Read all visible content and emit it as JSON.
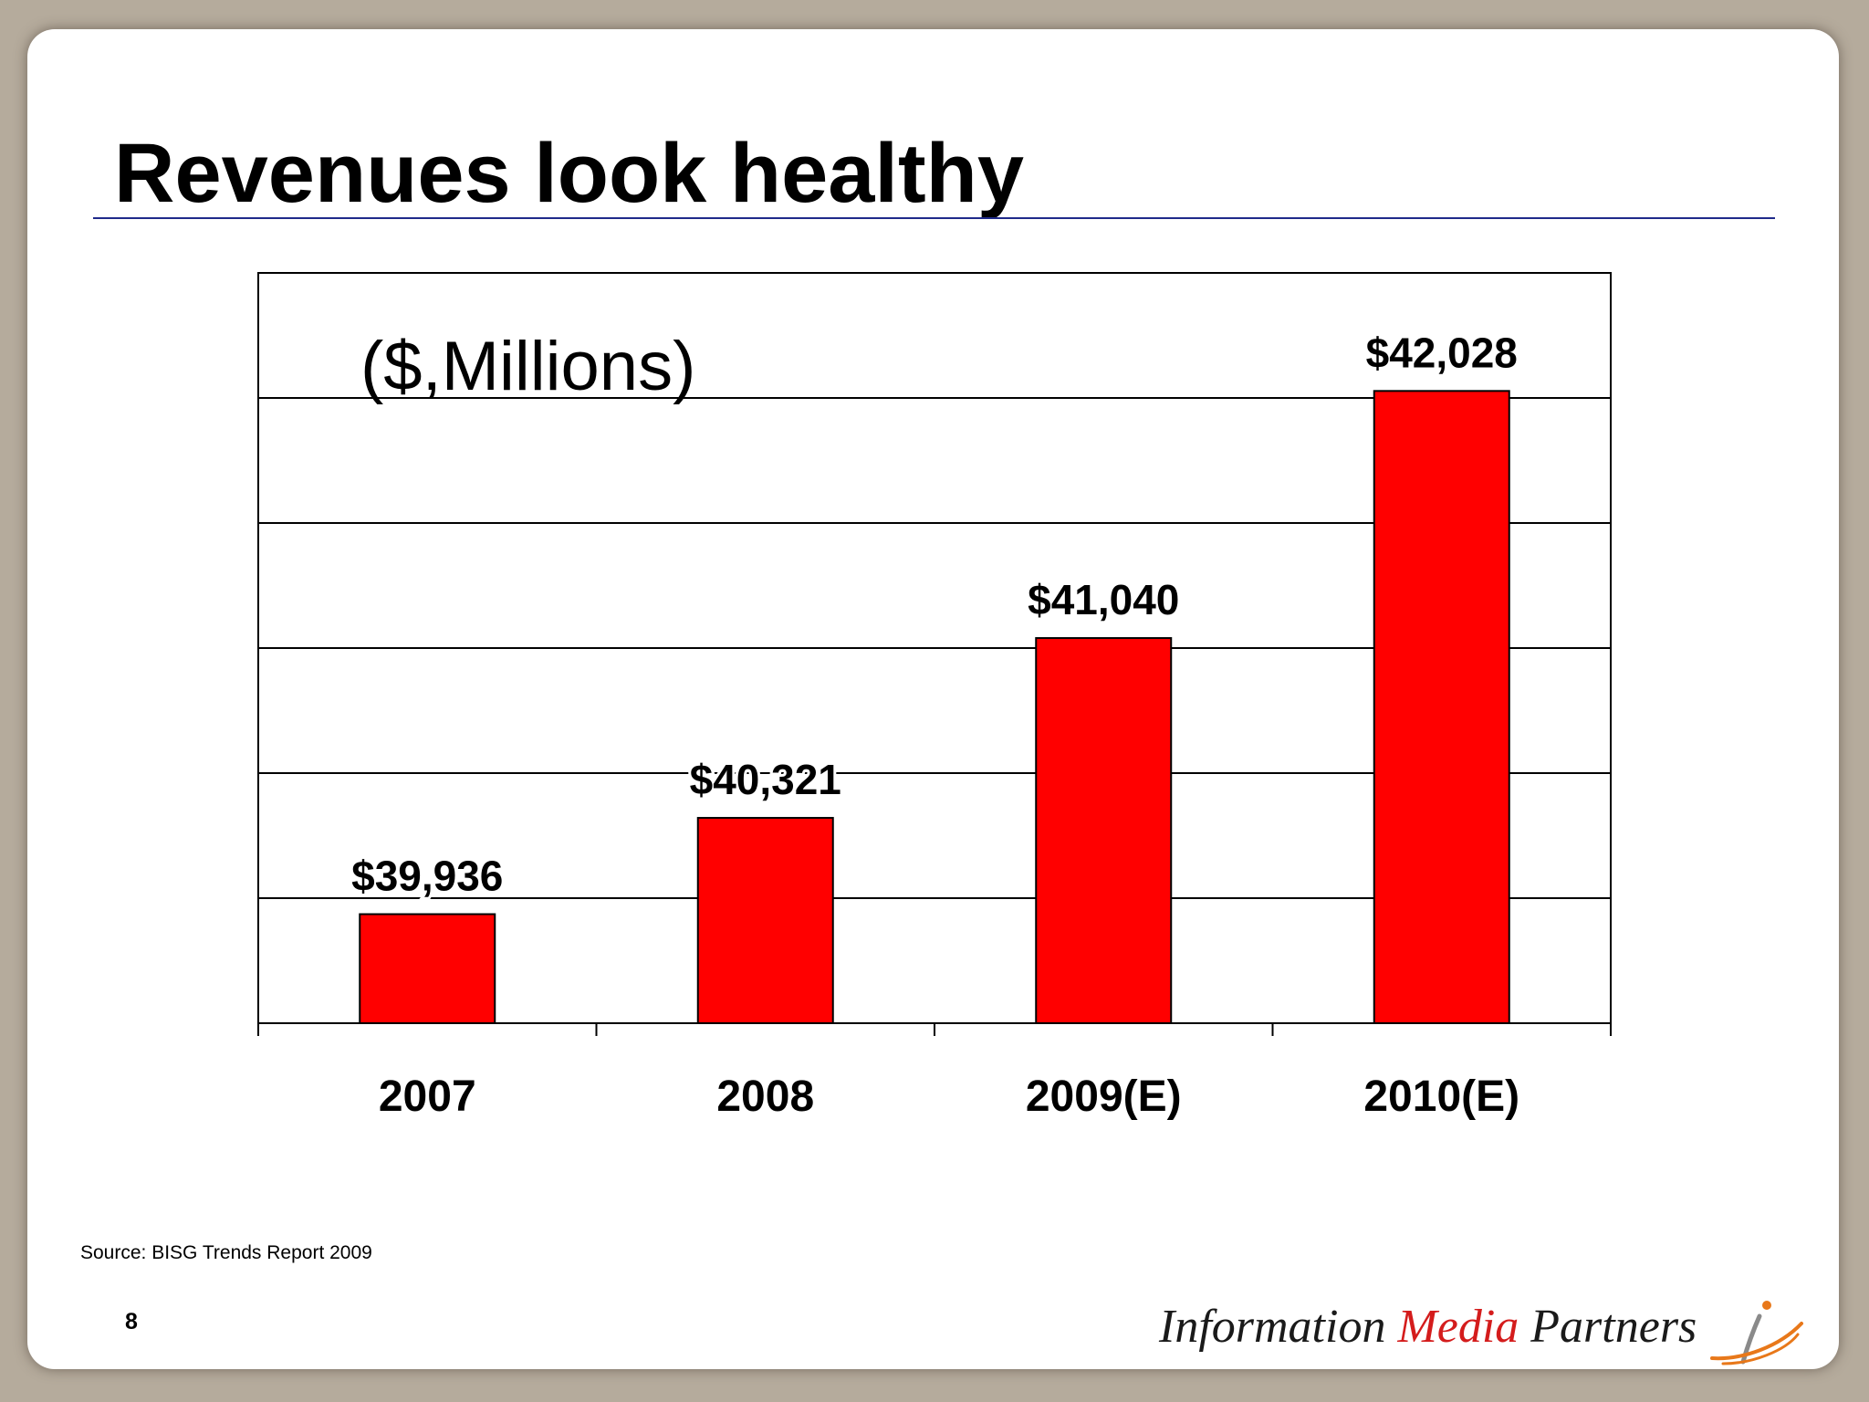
{
  "slide": {
    "title": "Revenues look healthy",
    "units_note": "($,Millions)",
    "source": "Source: BISG Trends Report 2009",
    "page_number": "8",
    "logo": {
      "part1": "Information ",
      "part2": "Media",
      "part3": " Partners",
      "mark_icon": "i-swoosh-logo-icon"
    }
  },
  "chart_data": {
    "type": "bar",
    "categories": [
      "2007",
      "2008",
      "2009(E)",
      "2010(E)"
    ],
    "values": [
      39936,
      40321,
      41040,
      42028
    ],
    "value_labels": [
      "$39,936",
      "$40,321",
      "$41,040",
      "$42,028"
    ],
    "ylim": [
      39500,
      42500
    ],
    "gridlines": [
      40000,
      40500,
      41000,
      41500,
      42000
    ],
    "grid": true,
    "bar_color": "#ff0000",
    "legend": "none"
  }
}
